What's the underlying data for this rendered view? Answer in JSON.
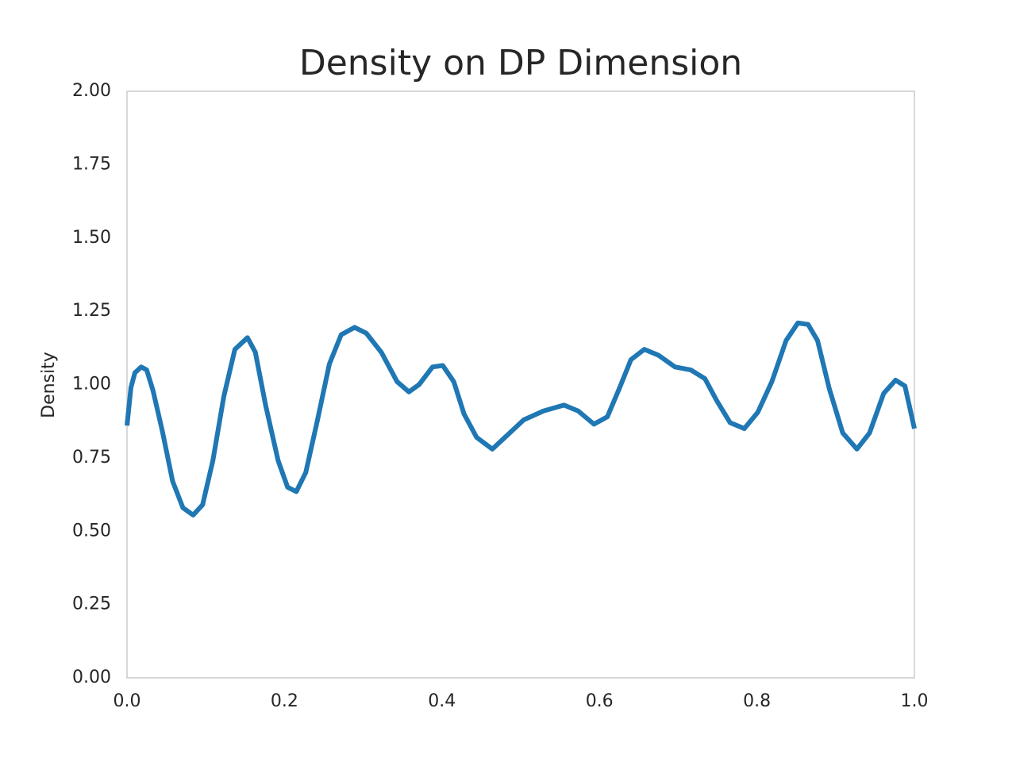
{
  "chart_data": {
    "type": "line",
    "title": "Density on DP Dimension",
    "y_label": "Density",
    "xlim": [
      0,
      1
    ],
    "ylim": [
      0,
      2
    ],
    "xticks": [
      {
        "value": 0,
        "label": "0.0"
      },
      0.2,
      0.4,
      0.6,
      0.8,
      {
        "value": 1,
        "label": "1.0"
      }
    ],
    "yticks": [
      {
        "value": 0,
        "label": "0.00"
      },
      0.25,
      {
        "value": 0.5,
        "label": "0.50"
      },
      0.75,
      {
        "value": 1,
        "label": "1.00"
      },
      1.25,
      {
        "value": 1.5,
        "label": "1.50"
      },
      1.75,
      {
        "value": 2,
        "label": "2.00"
      }
    ],
    "grid": false,
    "x": [
      0,
      0.005,
      0.01,
      0.018,
      0.025,
      0.033,
      0.045,
      0.058,
      0.071,
      0.084,
      0.096,
      0.109,
      0.123,
      0.137,
      0.153,
      0.163,
      0.176,
      0.192,
      0.204,
      0.215,
      0.227,
      0.242,
      0.257,
      0.272,
      0.289,
      0.304,
      0.323,
      0.343,
      0.358,
      0.371,
      0.388,
      0.401,
      0.415,
      0.428,
      0.444,
      0.464,
      0.484,
      0.504,
      0.529,
      0.555,
      0.573,
      0.593,
      0.61,
      0.625,
      0.64,
      0.657,
      0.675,
      0.696,
      0.716,
      0.734,
      0.749,
      0.766,
      0.784,
      0.801,
      0.819,
      0.837,
      0.852,
      0.865,
      0.877,
      0.892,
      0.909,
      0.927,
      0.943,
      0.961,
      0.976,
      0.988,
      1.0
    ],
    "series": [
      {
        "color": "#1f77b4",
        "values": [
          0.86,
          0.99,
          1.04,
          1.06,
          1.05,
          0.98,
          0.84,
          0.67,
          0.58,
          0.555,
          0.59,
          0.74,
          0.96,
          1.12,
          1.16,
          1.11,
          0.93,
          0.74,
          0.65,
          0.635,
          0.7,
          0.88,
          1.07,
          1.17,
          1.195,
          1.175,
          1.11,
          1.01,
          0.975,
          1.0,
          1.06,
          1.065,
          1.01,
          0.9,
          0.82,
          0.78,
          0.83,
          0.88,
          0.91,
          0.93,
          0.91,
          0.865,
          0.89,
          0.985,
          1.085,
          1.12,
          1.1,
          1.06,
          1.05,
          1.02,
          0.945,
          0.87,
          0.85,
          0.905,
          1.01,
          1.15,
          1.21,
          1.205,
          1.15,
          0.985,
          0.835,
          0.78,
          0.835,
          0.97,
          1.015,
          0.995,
          0.85
        ]
      }
    ]
  }
}
